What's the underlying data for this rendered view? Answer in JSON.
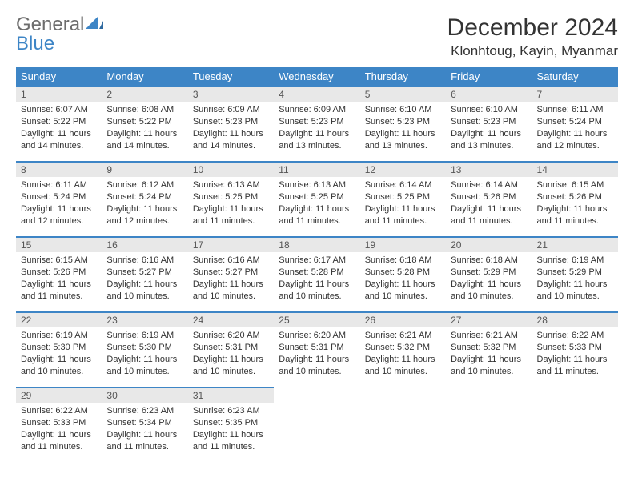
{
  "brand": {
    "part1": "General",
    "part2": "Blue"
  },
  "title": "December 2024",
  "location": "Klonhtoug, Kayin, Myanmar",
  "colors": {
    "header_bg": "#3d85c6",
    "header_text": "#ffffff",
    "daynum_bg": "#e8e8e8",
    "daynum_border": "#3d85c6",
    "body_text": "#333333",
    "brand_gray": "#6d6d6d",
    "brand_blue": "#3d85c6"
  },
  "weekdays": [
    "Sunday",
    "Monday",
    "Tuesday",
    "Wednesday",
    "Thursday",
    "Friday",
    "Saturday"
  ],
  "weeks": [
    [
      {
        "n": "1",
        "sr": "Sunrise: 6:07 AM",
        "ss": "Sunset: 5:22 PM",
        "dl": "Daylight: 11 hours and 14 minutes."
      },
      {
        "n": "2",
        "sr": "Sunrise: 6:08 AM",
        "ss": "Sunset: 5:22 PM",
        "dl": "Daylight: 11 hours and 14 minutes."
      },
      {
        "n": "3",
        "sr": "Sunrise: 6:09 AM",
        "ss": "Sunset: 5:23 PM",
        "dl": "Daylight: 11 hours and 14 minutes."
      },
      {
        "n": "4",
        "sr": "Sunrise: 6:09 AM",
        "ss": "Sunset: 5:23 PM",
        "dl": "Daylight: 11 hours and 13 minutes."
      },
      {
        "n": "5",
        "sr": "Sunrise: 6:10 AM",
        "ss": "Sunset: 5:23 PM",
        "dl": "Daylight: 11 hours and 13 minutes."
      },
      {
        "n": "6",
        "sr": "Sunrise: 6:10 AM",
        "ss": "Sunset: 5:23 PM",
        "dl": "Daylight: 11 hours and 13 minutes."
      },
      {
        "n": "7",
        "sr": "Sunrise: 6:11 AM",
        "ss": "Sunset: 5:24 PM",
        "dl": "Daylight: 11 hours and 12 minutes."
      }
    ],
    [
      {
        "n": "8",
        "sr": "Sunrise: 6:11 AM",
        "ss": "Sunset: 5:24 PM",
        "dl": "Daylight: 11 hours and 12 minutes."
      },
      {
        "n": "9",
        "sr": "Sunrise: 6:12 AM",
        "ss": "Sunset: 5:24 PM",
        "dl": "Daylight: 11 hours and 12 minutes."
      },
      {
        "n": "10",
        "sr": "Sunrise: 6:13 AM",
        "ss": "Sunset: 5:25 PM",
        "dl": "Daylight: 11 hours and 11 minutes."
      },
      {
        "n": "11",
        "sr": "Sunrise: 6:13 AM",
        "ss": "Sunset: 5:25 PM",
        "dl": "Daylight: 11 hours and 11 minutes."
      },
      {
        "n": "12",
        "sr": "Sunrise: 6:14 AM",
        "ss": "Sunset: 5:25 PM",
        "dl": "Daylight: 11 hours and 11 minutes."
      },
      {
        "n": "13",
        "sr": "Sunrise: 6:14 AM",
        "ss": "Sunset: 5:26 PM",
        "dl": "Daylight: 11 hours and 11 minutes."
      },
      {
        "n": "14",
        "sr": "Sunrise: 6:15 AM",
        "ss": "Sunset: 5:26 PM",
        "dl": "Daylight: 11 hours and 11 minutes."
      }
    ],
    [
      {
        "n": "15",
        "sr": "Sunrise: 6:15 AM",
        "ss": "Sunset: 5:26 PM",
        "dl": "Daylight: 11 hours and 11 minutes."
      },
      {
        "n": "16",
        "sr": "Sunrise: 6:16 AM",
        "ss": "Sunset: 5:27 PM",
        "dl": "Daylight: 11 hours and 10 minutes."
      },
      {
        "n": "17",
        "sr": "Sunrise: 6:16 AM",
        "ss": "Sunset: 5:27 PM",
        "dl": "Daylight: 11 hours and 10 minutes."
      },
      {
        "n": "18",
        "sr": "Sunrise: 6:17 AM",
        "ss": "Sunset: 5:28 PM",
        "dl": "Daylight: 11 hours and 10 minutes."
      },
      {
        "n": "19",
        "sr": "Sunrise: 6:18 AM",
        "ss": "Sunset: 5:28 PM",
        "dl": "Daylight: 11 hours and 10 minutes."
      },
      {
        "n": "20",
        "sr": "Sunrise: 6:18 AM",
        "ss": "Sunset: 5:29 PM",
        "dl": "Daylight: 11 hours and 10 minutes."
      },
      {
        "n": "21",
        "sr": "Sunrise: 6:19 AM",
        "ss": "Sunset: 5:29 PM",
        "dl": "Daylight: 11 hours and 10 minutes."
      }
    ],
    [
      {
        "n": "22",
        "sr": "Sunrise: 6:19 AM",
        "ss": "Sunset: 5:30 PM",
        "dl": "Daylight: 11 hours and 10 minutes."
      },
      {
        "n": "23",
        "sr": "Sunrise: 6:19 AM",
        "ss": "Sunset: 5:30 PM",
        "dl": "Daylight: 11 hours and 10 minutes."
      },
      {
        "n": "24",
        "sr": "Sunrise: 6:20 AM",
        "ss": "Sunset: 5:31 PM",
        "dl": "Daylight: 11 hours and 10 minutes."
      },
      {
        "n": "25",
        "sr": "Sunrise: 6:20 AM",
        "ss": "Sunset: 5:31 PM",
        "dl": "Daylight: 11 hours and 10 minutes."
      },
      {
        "n": "26",
        "sr": "Sunrise: 6:21 AM",
        "ss": "Sunset: 5:32 PM",
        "dl": "Daylight: 11 hours and 10 minutes."
      },
      {
        "n": "27",
        "sr": "Sunrise: 6:21 AM",
        "ss": "Sunset: 5:32 PM",
        "dl": "Daylight: 11 hours and 10 minutes."
      },
      {
        "n": "28",
        "sr": "Sunrise: 6:22 AM",
        "ss": "Sunset: 5:33 PM",
        "dl": "Daylight: 11 hours and 11 minutes."
      }
    ],
    [
      {
        "n": "29",
        "sr": "Sunrise: 6:22 AM",
        "ss": "Sunset: 5:33 PM",
        "dl": "Daylight: 11 hours and 11 minutes."
      },
      {
        "n": "30",
        "sr": "Sunrise: 6:23 AM",
        "ss": "Sunset: 5:34 PM",
        "dl": "Daylight: 11 hours and 11 minutes."
      },
      {
        "n": "31",
        "sr": "Sunrise: 6:23 AM",
        "ss": "Sunset: 5:35 PM",
        "dl": "Daylight: 11 hours and 11 minutes."
      },
      null,
      null,
      null,
      null
    ]
  ]
}
